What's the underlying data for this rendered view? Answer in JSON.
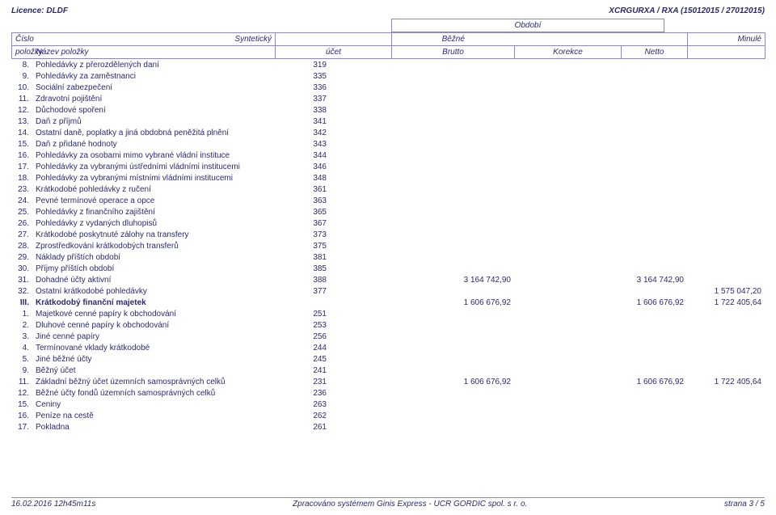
{
  "header": {
    "left": "Licence: DLDF",
    "right": "XCRGURXA / RXA (15012015 / 27012015)"
  },
  "colhdr": {
    "period": "Období",
    "cislo": "Číslo",
    "polozky": "položky",
    "nazev": "Název položky",
    "synt": "Syntetický",
    "ucet": "účet",
    "bezne": "Běžné",
    "brutto": "Brutto",
    "korekce": "Korekce",
    "netto": "Netto",
    "minule": "Minulé"
  },
  "rows": [
    {
      "n": "8.",
      "name": "Pohledávky z přerozdělených daní",
      "ucet": "319"
    },
    {
      "n": "9.",
      "name": "Pohledávky za zaměstnanci",
      "ucet": "335"
    },
    {
      "n": "10.",
      "name": "Sociální zabezpečení",
      "ucet": "336"
    },
    {
      "n": "11.",
      "name": "Zdravotní pojištění",
      "ucet": "337"
    },
    {
      "n": "12.",
      "name": "Důchodové spoření",
      "ucet": "338"
    },
    {
      "n": "13.",
      "name": "Daň z příjmů",
      "ucet": "341"
    },
    {
      "n": "14.",
      "name": "Ostatní daně, poplatky a jiná obdobná peněžitá plnění",
      "ucet": "342"
    },
    {
      "n": "15.",
      "name": "Daň z přidané hodnoty",
      "ucet": "343"
    },
    {
      "n": "16.",
      "name": "Pohledávky za osobami mimo vybrané vládní instituce",
      "ucet": "344"
    },
    {
      "n": "17.",
      "name": "Pohledávky za vybranými ústředními vládními institucemi",
      "ucet": "346"
    },
    {
      "n": "18.",
      "name": "Pohledávky za vybranými místními vládními institucemi",
      "ucet": "348"
    },
    {
      "n": "23.",
      "name": "Krátkodobé pohledávky z ručení",
      "ucet": "361"
    },
    {
      "n": "24.",
      "name": "Pevné termínové operace a opce",
      "ucet": "363"
    },
    {
      "n": "25.",
      "name": "Pohledávky z finančního zajištění",
      "ucet": "365"
    },
    {
      "n": "26.",
      "name": "Pohledávky z vydaných dluhopisů",
      "ucet": "367"
    },
    {
      "n": "27.",
      "name": "Krátkodobé poskytnuté zálohy na transfery",
      "ucet": "373"
    },
    {
      "n": "28.",
      "name": "Zprostředkování krátkodobých transferů",
      "ucet": "375"
    },
    {
      "n": "29.",
      "name": "Náklady příštích období",
      "ucet": "381"
    },
    {
      "n": "30.",
      "name": "Příjmy příštích období",
      "ucet": "385"
    },
    {
      "n": "31.",
      "name": "Dohadné účty aktivní",
      "ucet": "388",
      "brutto": "3 164 742,90",
      "netto": "3 164 742,90"
    },
    {
      "n": "32.",
      "name": "Ostatní krátkodobé pohledávky",
      "ucet": "377",
      "minule": "1 575 047,20"
    },
    {
      "n": "III.",
      "name": "Krátkodobý finanční majetek",
      "sec": true,
      "brutto": "1 606 676,92",
      "netto": "1 606 676,92",
      "minule": "1 722 405,64"
    },
    {
      "n": "1.",
      "name": "Majetkové cenné papíry k obchodování",
      "ucet": "251"
    },
    {
      "n": "2.",
      "name": "Dluhové cenné papíry k obchodování",
      "ucet": "253"
    },
    {
      "n": "3.",
      "name": "Jiné cenné papíry",
      "ucet": "256"
    },
    {
      "n": "4.",
      "name": "Termínované vklady krátkodobé",
      "ucet": "244"
    },
    {
      "n": "5.",
      "name": "Jiné běžné účty",
      "ucet": "245"
    },
    {
      "n": "9.",
      "name": "Běžný účet",
      "ucet": "241"
    },
    {
      "n": "11.",
      "name": "Základní běžný účet územních samosprávných celků",
      "ucet": "231",
      "brutto": "1 606 676,92",
      "netto": "1 606 676,92",
      "minule": "1 722 405,64"
    },
    {
      "n": "12.",
      "name": "Běžné účty fondů územních samosprávných celků",
      "ucet": "236"
    },
    {
      "n": "15.",
      "name": "Ceniny",
      "ucet": "263"
    },
    {
      "n": "16.",
      "name": "Peníze na cestě",
      "ucet": "262"
    },
    {
      "n": "17.",
      "name": "Pokladna",
      "ucet": "261"
    }
  ],
  "footer": {
    "left": "16.02.2016 12h45m11s",
    "center": "Zpracováno systémem Ginis Express - UCR GORDIC spol. s r. o.",
    "right": "strana 3 / 5"
  }
}
